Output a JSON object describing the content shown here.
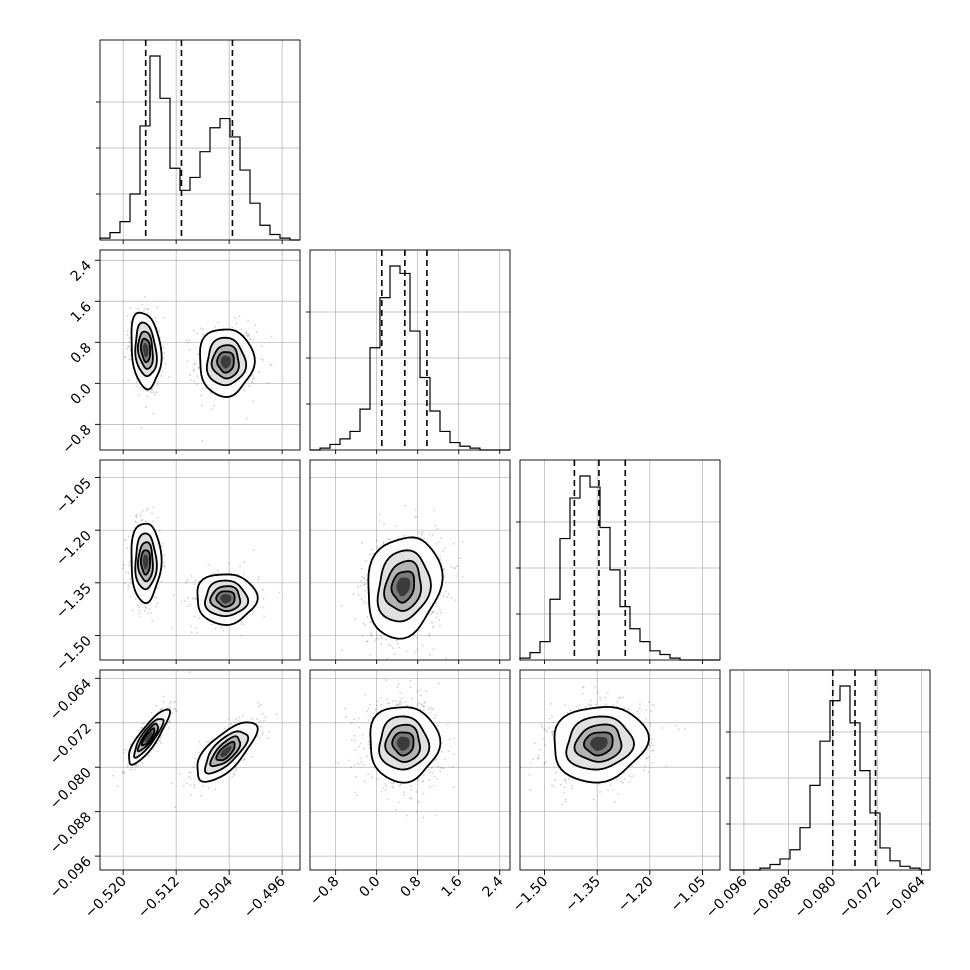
{
  "chart_data": {
    "type": "corner",
    "parameters": [
      {
        "id": "p1",
        "range": [
          -0.5235,
          -0.4933
        ],
        "ticks": [
          -0.52,
          -0.512,
          -0.504,
          -0.496
        ],
        "tick_labels": [
          "−0.520",
          "−0.512",
          "−0.504",
          "−0.496"
        ]
      },
      {
        "id": "p2",
        "range": [
          -1.3,
          2.6
        ],
        "ticks": [
          -0.8,
          0.0,
          0.8,
          1.6,
          2.4
        ],
        "tick_labels": [
          "−0.8",
          "0.0",
          "0.8",
          "1.6",
          "2.4"
        ]
      },
      {
        "id": "p3",
        "range": [
          -1.57,
          -1.0
        ],
        "ticks": [
          -1.5,
          -1.35,
          -1.2,
          -1.05
        ],
        "tick_labels": [
          "−1.50",
          "−1.35",
          "−1.20",
          "−1.05"
        ]
      },
      {
        "id": "p4",
        "range": [
          -0.0985,
          -0.0625
        ],
        "ticks": [
          -0.096,
          -0.088,
          -0.08,
          -0.072,
          -0.064
        ],
        "tick_labels": [
          "−0.096",
          "−0.088",
          "−0.080",
          "−0.072",
          "−0.064"
        ]
      }
    ],
    "quantiles": {
      "p1": [
        -0.5166,
        -0.5112,
        -0.5035
      ],
      "p2": [
        0.1,
        0.55,
        0.98
      ],
      "p3": [
        -1.415,
        -1.345,
        -1.27
      ],
      "p4": [
        -0.08,
        -0.076,
        -0.0723
      ]
    },
    "histograms": {
      "p1": {
        "edges_range": [
          -0.5235,
          -0.4933
        ],
        "counts": [
          1,
          4,
          10,
          25,
          62,
          100,
          77,
          39,
          27,
          34,
          48,
          61,
          66,
          56,
          38,
          20,
          8,
          3,
          1,
          0
        ]
      },
      "p2": {
        "edges_range": [
          -1.3,
          2.6
        ],
        "counts": [
          0,
          1,
          3,
          6,
          10,
          22,
          55,
          82,
          99,
          95,
          64,
          39,
          21,
          10,
          4,
          2,
          1,
          0,
          0,
          0
        ]
      },
      "p3": {
        "edges_range": [
          -1.57,
          -1.0
        ],
        "counts": [
          1,
          4,
          10,
          33,
          66,
          88,
          100,
          94,
          72,
          49,
          29,
          17,
          10,
          5,
          3,
          1,
          0,
          0,
          0,
          0
        ]
      },
      "p4": {
        "edges_range": [
          -0.0985,
          -0.0625
        ],
        "counts": [
          0,
          0,
          0,
          1,
          3,
          6,
          11,
          23,
          46,
          70,
          92,
          100,
          80,
          54,
          31,
          12,
          5,
          2,
          1,
          0
        ]
      }
    },
    "joint": {
      "p2_vs_p1": {
        "modes": [
          {
            "x": -0.5166,
            "y": 0.65,
            "sx": 0.0011,
            "sy": 0.36,
            "rho": -0.2
          },
          {
            "x": -0.5045,
            "y": 0.42,
            "sx": 0.002,
            "sy": 0.32,
            "rho": 0.0
          }
        ]
      },
      "p3_vs_p1": {
        "modes": [
          {
            "x": -0.5166,
            "y": -1.29,
            "sx": 0.0011,
            "sy": 0.055,
            "rho": 0.0
          },
          {
            "x": -0.5045,
            "y": -1.395,
            "sx": 0.0022,
            "sy": 0.035,
            "rho": 0.0
          }
        ]
      },
      "p4_vs_p1": {
        "modes": [
          {
            "x": -0.5162,
            "y": -0.0746,
            "sx": 0.0015,
            "sy": 0.0024,
            "rho": 0.85
          },
          {
            "x": -0.5045,
            "y": -0.0772,
            "sx": 0.0022,
            "sy": 0.0026,
            "rho": 0.7
          }
        ]
      },
      "p3_vs_p2": {
        "modes": [
          {
            "x": 0.52,
            "y": -1.36,
            "sx": 0.35,
            "sy": 0.07,
            "rho": 0.15
          }
        ]
      },
      "p4_vs_p2": {
        "modes": [
          {
            "x": 0.52,
            "y": -0.0757,
            "sx": 0.33,
            "sy": 0.0033,
            "rho": 0.0
          }
        ]
      },
      "p4_vs_p3": {
        "modes": [
          {
            "x": -1.345,
            "y": -0.0757,
            "sx": 0.065,
            "sy": 0.0033,
            "rho": 0.1
          }
        ]
      }
    },
    "grid": true,
    "colors": {
      "line": "#000000",
      "points": "#000000",
      "grid": "#b0b0b0",
      "background": "#ffffff"
    }
  }
}
